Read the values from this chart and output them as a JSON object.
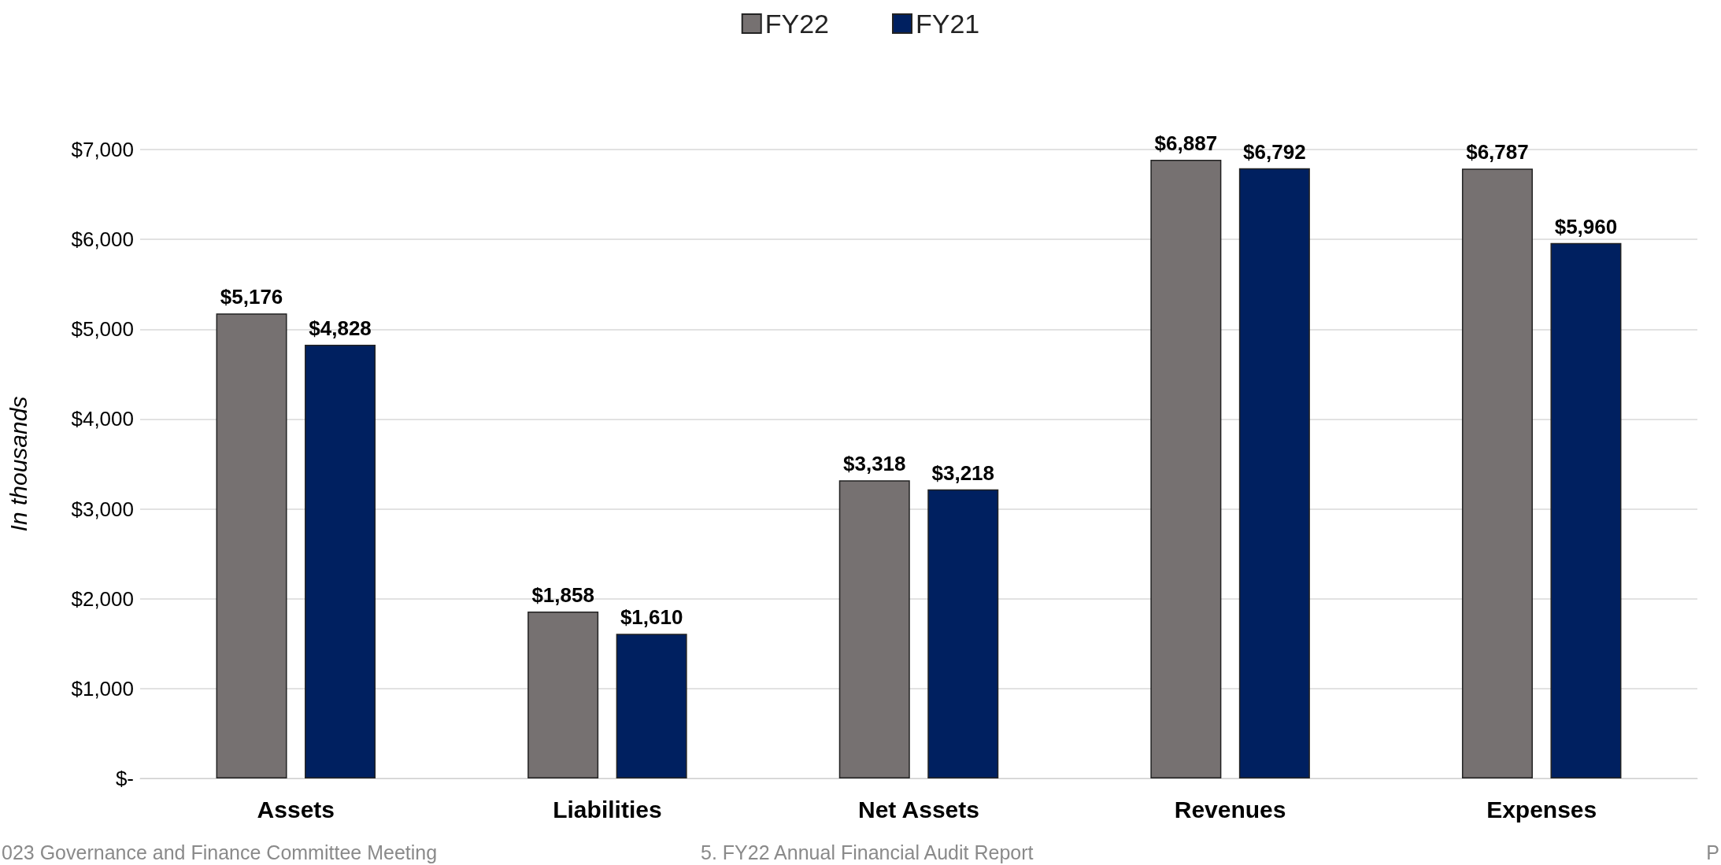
{
  "chart_data": {
    "type": "bar",
    "ylabel": "In thousands",
    "categories": [
      "Assets",
      "Liabilities",
      "Net Assets",
      "Revenues",
      "Expenses"
    ],
    "series": [
      {
        "name": "FY22",
        "color": "#767171",
        "values": [
          5176,
          1858,
          3318,
          6887,
          6787
        ],
        "value_labels": [
          "$5,176",
          "$1,858",
          "$3,318",
          "$6,887",
          "$6,787"
        ]
      },
      {
        "name": "FY21",
        "color": "#002060",
        "values": [
          4828,
          1610,
          3218,
          6792,
          5960
        ],
        "value_labels": [
          "$4,828",
          "$1,610",
          "$3,218",
          "$6,792",
          "$5,960"
        ]
      }
    ],
    "ylim": [
      0,
      7000
    ],
    "yticks": [
      {
        "value": 0,
        "label": "$-"
      },
      {
        "value": 1000,
        "label": "$1,000"
      },
      {
        "value": 2000,
        "label": "$2,000"
      },
      {
        "value": 3000,
        "label": "$3,000"
      },
      {
        "value": 4000,
        "label": "$4,000"
      },
      {
        "value": 5000,
        "label": "$5,000"
      },
      {
        "value": 6000,
        "label": "$6,000"
      },
      {
        "value": 7000,
        "label": "$7,000"
      }
    ],
    "grid": "y",
    "legend": "top",
    "annotations": [
      "023 Governance and Finance Committee Meeting",
      "5. FY22 Annual Financial Audit Report",
      "P"
    ]
  }
}
